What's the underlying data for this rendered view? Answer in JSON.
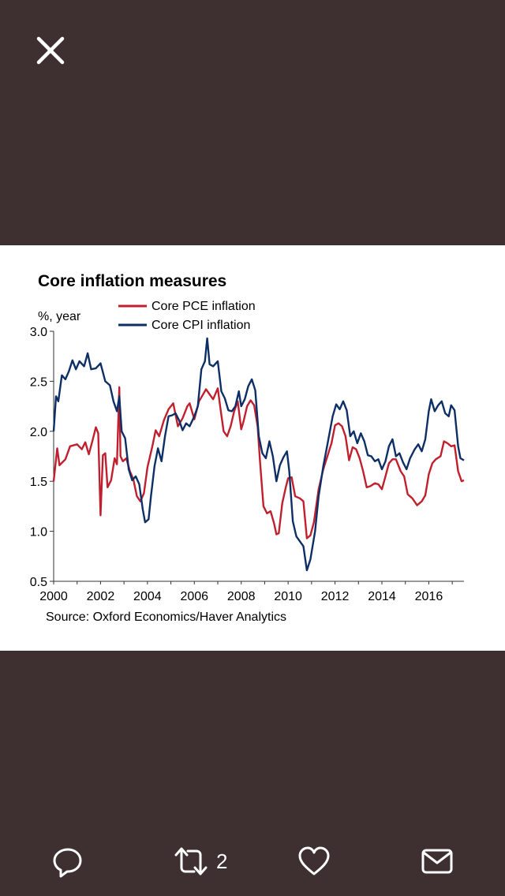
{
  "viewer": {
    "close_icon": "close-icon",
    "actions": {
      "reply_icon": "reply-icon",
      "retweet_icon": "retweet-icon",
      "retweet_count": "2",
      "like_icon": "heart-icon",
      "share_icon": "mail-icon"
    }
  },
  "chart_data": {
    "type": "line",
    "title": "Core inflation measures",
    "ylabel": "%, year",
    "xlabel": "",
    "source": "Source: Oxford Economics/Haver Analytics",
    "x_ticks": [
      "2000",
      "2002",
      "2004",
      "2006",
      "2008",
      "2010",
      "2012",
      "2014",
      "2016"
    ],
    "y_ticks": [
      "3.0",
      "2.5",
      "2.0",
      "1.5",
      "1.0",
      "0.5"
    ],
    "ylim": [
      0.5,
      3.0
    ],
    "xlim": [
      2000.0,
      2017.5
    ],
    "legend_position": "top-center",
    "colors": {
      "pce": "#c0202e",
      "cpi": "#0e2f66"
    },
    "series": [
      {
        "name": "Core PCE inflation",
        "color": "#c0202e",
        "points": [
          [
            2000.0,
            1.5
          ],
          [
            2000.15,
            1.83
          ],
          [
            2000.25,
            1.66
          ],
          [
            2000.5,
            1.72
          ],
          [
            2000.7,
            1.85
          ],
          [
            2001.0,
            1.87
          ],
          [
            2001.2,
            1.82
          ],
          [
            2001.35,
            1.89
          ],
          [
            2001.5,
            1.77
          ],
          [
            2001.65,
            1.9
          ],
          [
            2001.8,
            2.04
          ],
          [
            2001.9,
            1.98
          ],
          [
            2002.0,
            1.16
          ],
          [
            2002.1,
            1.76
          ],
          [
            2002.2,
            1.78
          ],
          [
            2002.3,
            1.44
          ],
          [
            2002.45,
            1.51
          ],
          [
            2002.6,
            1.73
          ],
          [
            2002.7,
            1.67
          ],
          [
            2002.8,
            2.44
          ],
          [
            2002.85,
            1.75
          ],
          [
            2002.95,
            1.7
          ],
          [
            2003.1,
            1.73
          ],
          [
            2003.25,
            1.6
          ],
          [
            2003.4,
            1.52
          ],
          [
            2003.55,
            1.35
          ],
          [
            2003.7,
            1.3
          ],
          [
            2003.85,
            1.38
          ],
          [
            2004.0,
            1.64
          ],
          [
            2004.2,
            1.84
          ],
          [
            2004.35,
            2.01
          ],
          [
            2004.5,
            1.95
          ],
          [
            2004.7,
            2.11
          ],
          [
            2004.9,
            2.22
          ],
          [
            2005.1,
            2.28
          ],
          [
            2005.3,
            2.05
          ],
          [
            2005.5,
            2.13
          ],
          [
            2005.7,
            2.25
          ],
          [
            2005.8,
            2.28
          ],
          [
            2006.0,
            2.12
          ],
          [
            2006.2,
            2.3
          ],
          [
            2006.35,
            2.36
          ],
          [
            2006.5,
            2.42
          ],
          [
            2006.65,
            2.37
          ],
          [
            2006.8,
            2.32
          ],
          [
            2007.0,
            2.43
          ],
          [
            2007.1,
            2.25
          ],
          [
            2007.25,
            2.0
          ],
          [
            2007.4,
            1.95
          ],
          [
            2007.55,
            2.05
          ],
          [
            2007.7,
            2.2
          ],
          [
            2007.85,
            2.3
          ],
          [
            2008.0,
            2.02
          ],
          [
            2008.1,
            2.1
          ],
          [
            2008.25,
            2.25
          ],
          [
            2008.4,
            2.31
          ],
          [
            2008.55,
            2.26
          ],
          [
            2008.7,
            2.05
          ],
          [
            2008.8,
            1.7
          ],
          [
            2008.95,
            1.25
          ],
          [
            2009.1,
            1.18
          ],
          [
            2009.25,
            1.2
          ],
          [
            2009.4,
            1.08
          ],
          [
            2009.5,
            0.97
          ],
          [
            2009.6,
            0.98
          ],
          [
            2009.75,
            1.28
          ],
          [
            2009.9,
            1.44
          ],
          [
            2010.0,
            1.53
          ],
          [
            2010.15,
            1.54
          ],
          [
            2010.3,
            1.35
          ],
          [
            2010.5,
            1.33
          ],
          [
            2010.65,
            1.3
          ],
          [
            2010.8,
            0.93
          ],
          [
            2010.95,
            0.96
          ],
          [
            2011.1,
            1.09
          ],
          [
            2011.3,
            1.42
          ],
          [
            2011.5,
            1.62
          ],
          [
            2011.7,
            1.77
          ],
          [
            2011.85,
            1.88
          ],
          [
            2012.0,
            2.06
          ],
          [
            2012.15,
            2.08
          ],
          [
            2012.3,
            2.05
          ],
          [
            2012.45,
            1.95
          ],
          [
            2012.6,
            1.71
          ],
          [
            2012.75,
            1.84
          ],
          [
            2012.9,
            1.82
          ],
          [
            2013.05,
            1.73
          ],
          [
            2013.2,
            1.6
          ],
          [
            2013.35,
            1.44
          ],
          [
            2013.5,
            1.45
          ],
          [
            2013.7,
            1.48
          ],
          [
            2013.85,
            1.47
          ],
          [
            2014.0,
            1.42
          ],
          [
            2014.15,
            1.55
          ],
          [
            2014.3,
            1.68
          ],
          [
            2014.45,
            1.72
          ],
          [
            2014.6,
            1.72
          ],
          [
            2014.8,
            1.6
          ],
          [
            2014.95,
            1.55
          ],
          [
            2015.1,
            1.37
          ],
          [
            2015.3,
            1.33
          ],
          [
            2015.5,
            1.26
          ],
          [
            2015.7,
            1.3
          ],
          [
            2015.85,
            1.36
          ],
          [
            2016.0,
            1.57
          ],
          [
            2016.15,
            1.68
          ],
          [
            2016.3,
            1.72
          ],
          [
            2016.5,
            1.75
          ],
          [
            2016.65,
            1.9
          ],
          [
            2016.8,
            1.88
          ],
          [
            2016.95,
            1.85
          ],
          [
            2017.1,
            1.86
          ],
          [
            2017.25,
            1.6
          ],
          [
            2017.4,
            1.5
          ],
          [
            2017.5,
            1.51
          ]
        ]
      },
      {
        "name": "Core CPI inflation",
        "color": "#0e2f66",
        "points": [
          [
            2000.0,
            2.0
          ],
          [
            2000.1,
            2.35
          ],
          [
            2000.2,
            2.3
          ],
          [
            2000.35,
            2.56
          ],
          [
            2000.5,
            2.52
          ],
          [
            2000.65,
            2.6
          ],
          [
            2000.8,
            2.71
          ],
          [
            2000.95,
            2.62
          ],
          [
            2001.1,
            2.7
          ],
          [
            2001.3,
            2.65
          ],
          [
            2001.45,
            2.78
          ],
          [
            2001.6,
            2.62
          ],
          [
            2001.8,
            2.63
          ],
          [
            2002.0,
            2.68
          ],
          [
            2002.2,
            2.5
          ],
          [
            2002.4,
            2.46
          ],
          [
            2002.55,
            2.3
          ],
          [
            2002.7,
            2.2
          ],
          [
            2002.8,
            2.35
          ],
          [
            2002.9,
            2.0
          ],
          [
            2003.05,
            1.93
          ],
          [
            2003.2,
            1.62
          ],
          [
            2003.35,
            1.51
          ],
          [
            2003.5,
            1.55
          ],
          [
            2003.65,
            1.47
          ],
          [
            2003.8,
            1.22
          ],
          [
            2003.9,
            1.09
          ],
          [
            2004.05,
            1.12
          ],
          [
            2004.15,
            1.35
          ],
          [
            2004.3,
            1.65
          ],
          [
            2004.45,
            1.83
          ],
          [
            2004.6,
            1.7
          ],
          [
            2004.75,
            1.95
          ],
          [
            2004.9,
            2.15
          ],
          [
            2005.05,
            2.16
          ],
          [
            2005.2,
            2.18
          ],
          [
            2005.35,
            2.11
          ],
          [
            2005.5,
            2.01
          ],
          [
            2005.65,
            2.08
          ],
          [
            2005.8,
            2.05
          ],
          [
            2006.0,
            2.15
          ],
          [
            2006.15,
            2.25
          ],
          [
            2006.3,
            2.62
          ],
          [
            2006.45,
            2.7
          ],
          [
            2006.55,
            2.93
          ],
          [
            2006.65,
            2.67
          ],
          [
            2006.8,
            2.65
          ],
          [
            2007.0,
            2.7
          ],
          [
            2007.15,
            2.4
          ],
          [
            2007.3,
            2.33
          ],
          [
            2007.45,
            2.21
          ],
          [
            2007.6,
            2.2
          ],
          [
            2007.75,
            2.25
          ],
          [
            2007.9,
            2.4
          ],
          [
            2008.0,
            2.25
          ],
          [
            2008.15,
            2.32
          ],
          [
            2008.3,
            2.45
          ],
          [
            2008.45,
            2.52
          ],
          [
            2008.6,
            2.41
          ],
          [
            2008.75,
            1.95
          ],
          [
            2008.9,
            1.78
          ],
          [
            2009.05,
            1.73
          ],
          [
            2009.2,
            1.9
          ],
          [
            2009.35,
            1.75
          ],
          [
            2009.5,
            1.5
          ],
          [
            2009.65,
            1.66
          ],
          [
            2009.8,
            1.74
          ],
          [
            2009.95,
            1.8
          ],
          [
            2010.05,
            1.6
          ],
          [
            2010.2,
            1.1
          ],
          [
            2010.35,
            0.95
          ],
          [
            2010.5,
            0.9
          ],
          [
            2010.65,
            0.85
          ],
          [
            2010.8,
            0.61
          ],
          [
            2010.95,
            0.72
          ],
          [
            2011.15,
            1.0
          ],
          [
            2011.3,
            1.35
          ],
          [
            2011.5,
            1.65
          ],
          [
            2011.7,
            1.9
          ],
          [
            2011.9,
            2.15
          ],
          [
            2012.05,
            2.27
          ],
          [
            2012.2,
            2.22
          ],
          [
            2012.35,
            2.3
          ],
          [
            2012.5,
            2.21
          ],
          [
            2012.65,
            1.95
          ],
          [
            2012.8,
            2.0
          ],
          [
            2012.95,
            1.88
          ],
          [
            2013.1,
            1.98
          ],
          [
            2013.25,
            1.9
          ],
          [
            2013.4,
            1.76
          ],
          [
            2013.55,
            1.75
          ],
          [
            2013.7,
            1.7
          ],
          [
            2013.85,
            1.72
          ],
          [
            2014.0,
            1.62
          ],
          [
            2014.15,
            1.7
          ],
          [
            2014.3,
            1.85
          ],
          [
            2014.45,
            1.92
          ],
          [
            2014.6,
            1.75
          ],
          [
            2014.75,
            1.78
          ],
          [
            2014.9,
            1.69
          ],
          [
            2015.05,
            1.62
          ],
          [
            2015.2,
            1.73
          ],
          [
            2015.4,
            1.82
          ],
          [
            2015.55,
            1.87
          ],
          [
            2015.7,
            1.8
          ],
          [
            2015.85,
            1.92
          ],
          [
            2016.0,
            2.2
          ],
          [
            2016.1,
            2.32
          ],
          [
            2016.25,
            2.2
          ],
          [
            2016.4,
            2.26
          ],
          [
            2016.55,
            2.3
          ],
          [
            2016.7,
            2.18
          ],
          [
            2016.85,
            2.15
          ],
          [
            2016.95,
            2.26
          ],
          [
            2017.1,
            2.21
          ],
          [
            2017.25,
            1.85
          ],
          [
            2017.35,
            1.73
          ],
          [
            2017.5,
            1.71
          ]
        ]
      }
    ]
  }
}
